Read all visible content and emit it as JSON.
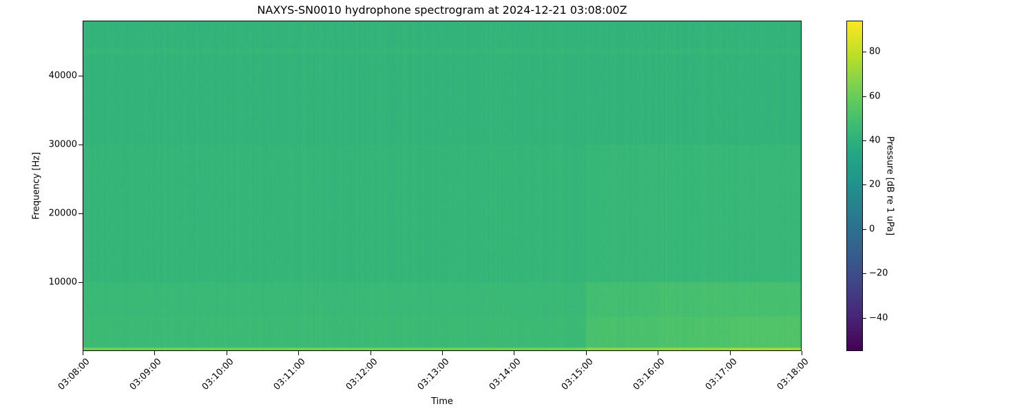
{
  "chart_data": {
    "type": "heatmap",
    "title": "NAXYS-SN0010 hydrophone spectrogram at 2024-12-21 03:08:00Z",
    "xlabel": "Time",
    "ylabel": "Frequency [Hz]",
    "colorbar_label": "Pressure [dB re 1 uPa]",
    "colormap": "viridis",
    "x_range": [
      "03:08:00",
      "03:18:00"
    ],
    "x_ticks": [
      "03:08:00",
      "03:09:00",
      "03:10:00",
      "03:11:00",
      "03:12:00",
      "03:13:00",
      "03:14:00",
      "03:15:00",
      "03:16:00",
      "03:17:00",
      "03:18:00"
    ],
    "ylim": [
      0,
      48000
    ],
    "y_ticks": [
      10000,
      20000,
      30000,
      40000
    ],
    "color_range": [
      -55,
      94
    ],
    "color_ticks": [
      -40,
      -20,
      0,
      20,
      40,
      60,
      80
    ],
    "approx_levels": {
      "note_units": "dB re 1 uPa",
      "time_minutes": [
        "03:08",
        "03:09",
        "03:10",
        "03:11",
        "03:12",
        "03:13",
        "03:14",
        "03:15",
        "03:16",
        "03:17"
      ],
      "bands_hz": [
        [
          30000,
          48000
        ],
        [
          10000,
          30000
        ],
        [
          5000,
          10000
        ],
        [
          500,
          5000
        ],
        [
          0,
          500
        ]
      ],
      "values": [
        [
          42,
          42,
          42,
          42,
          42,
          42,
          42,
          42,
          42,
          42
        ],
        [
          43,
          43,
          43,
          43,
          43,
          43,
          43,
          44,
          44,
          44
        ],
        [
          45,
          45,
          45,
          45,
          45,
          45,
          45,
          49,
          50,
          50
        ],
        [
          46,
          46,
          46,
          46,
          46,
          46,
          46,
          51,
          52,
          53
        ],
        [
          62,
          62,
          62,
          62,
          62,
          62,
          62,
          68,
          70,
          72
        ]
      ]
    },
    "grid": false
  }
}
